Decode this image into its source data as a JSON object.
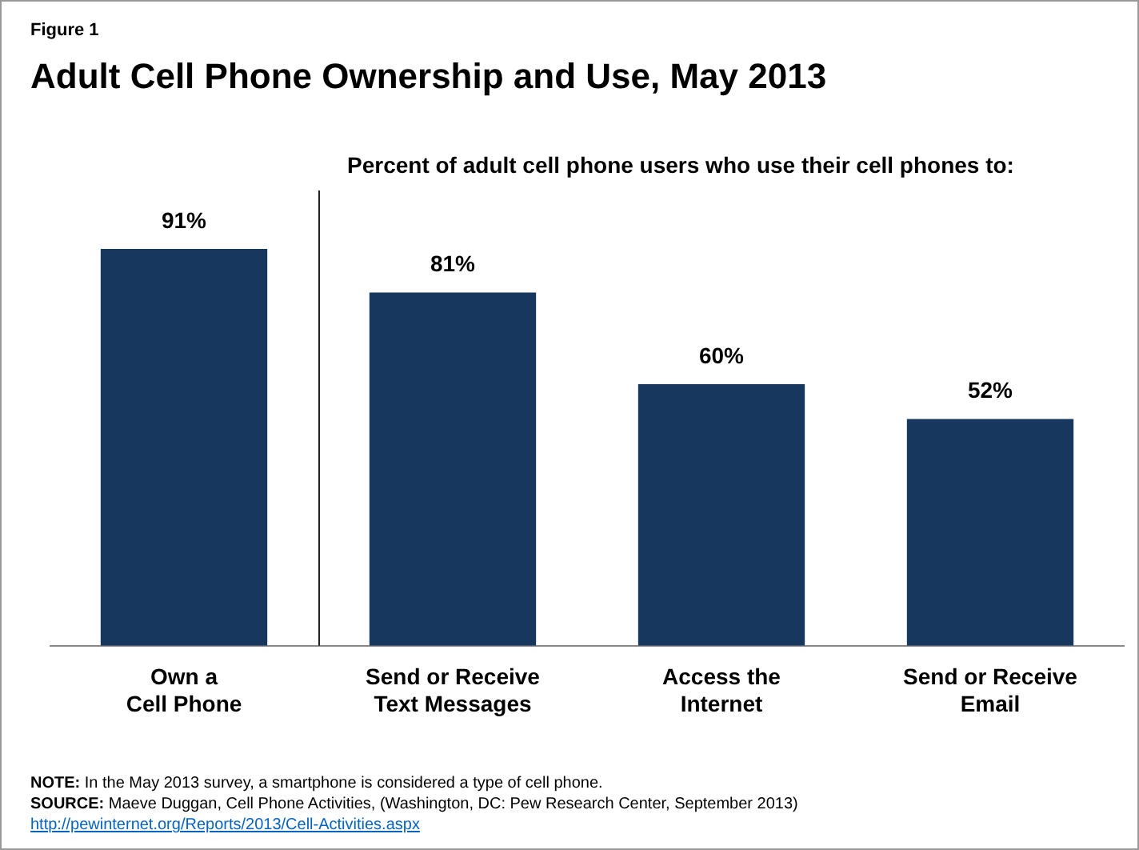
{
  "chart_data": {
    "type": "bar",
    "subtitle": "Figure 1",
    "title": "Adult Cell Phone Ownership and Use, May 2013",
    "categories": [
      "Own a\nCell Phone",
      "Send or Receive\nText Messages",
      "Access the\nInternet",
      "Send or Receive\nEmail"
    ],
    "values": [
      91,
      81,
      60,
      52
    ],
    "color": "#17375e",
    "value_labels": [
      "91%",
      "81%",
      "60%",
      "52%"
    ],
    "annotations": [
      "Percent  of adult cell phone users  who use their cell phones to:",
      "NOTE: In the May 2013 survey, a smartphone is considered a type of cell phone.",
      "SOURCE: Maeve Duggan, Cell Phone Activities, (Washington, DC: Pew Research Center, September 2013)",
      "http://pewinternet.org/Reports/2013/Cell-Activities.aspx"
    ],
    "grid": false,
    "legend": false
  }
}
